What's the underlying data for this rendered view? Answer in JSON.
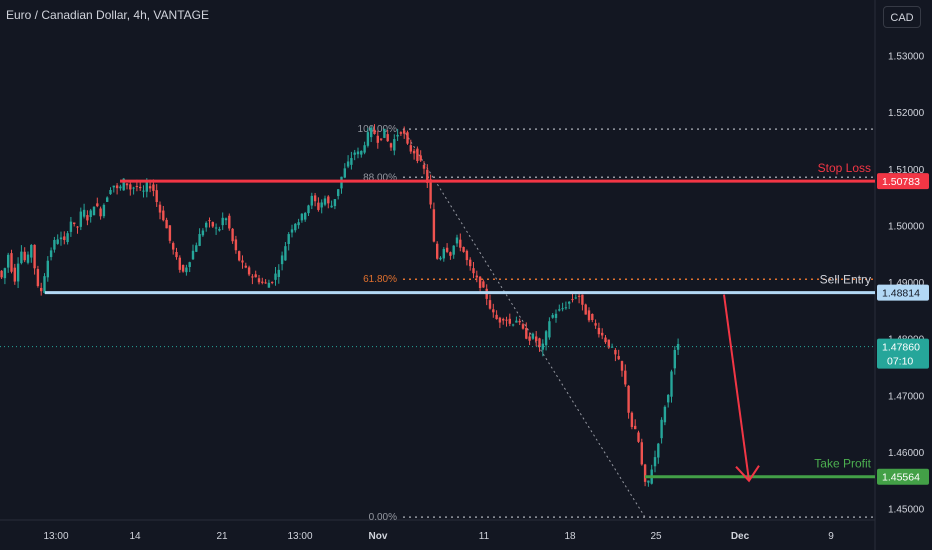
{
  "header": {
    "title": "Euro / Canadian Dollar, 4h, VANTAGE",
    "currency_button": "CAD"
  },
  "colors": {
    "background": "#131722",
    "up": "#26a69a",
    "down": "#ef5350",
    "stop_loss": "#f23645",
    "sell_entry": "#b2d8f5",
    "take_profit": "#43a047",
    "fib_line": "#9598a1",
    "fib_618": "#e0702e",
    "trend_arrow": "#f23645",
    "last_price": "#26a69a"
  },
  "chart_data": {
    "type": "candlestick",
    "ylim": [
      1.448,
      1.5345
    ],
    "y_ticks": [
      1.45,
      1.46,
      1.47,
      1.48,
      1.49,
      1.5,
      1.51,
      1.52,
      1.53
    ],
    "y_tick_labels": [
      "1.45000",
      "1.46000",
      "1.47000",
      "1.48000",
      "1.49000",
      "1.50000",
      "1.51000",
      "1.52000",
      "1.53000"
    ],
    "x_tick_labels": [
      "13:00",
      "14",
      "21",
      "13:00",
      "Nov",
      "11",
      "18",
      "25",
      "Dec",
      "9"
    ],
    "path_points": [
      [
        0,
        1.492
      ],
      [
        4,
        1.4905
      ],
      [
        10,
        1.495
      ],
      [
        16,
        1.49
      ],
      [
        22,
        1.496
      ],
      [
        28,
        1.493
      ],
      [
        34,
        1.4975
      ],
      [
        38,
        1.489
      ],
      [
        43,
        1.4885
      ],
      [
        48,
        1.493
      ],
      [
        54,
        1.4965
      ],
      [
        60,
        1.498
      ],
      [
        66,
        1.497
      ],
      [
        72,
        1.501
      ],
      [
        78,
        1.499
      ],
      [
        84,
        1.503
      ],
      [
        90,
        1.501
      ],
      [
        96,
        1.504
      ],
      [
        102,
        1.502
      ],
      [
        108,
        1.505
      ],
      [
        114,
        1.5075
      ],
      [
        120,
        1.506
      ],
      [
        126,
        1.508
      ],
      [
        132,
        1.5065
      ],
      [
        138,
        1.507
      ],
      [
        144,
        1.5055
      ],
      [
        150,
        1.5075
      ],
      [
        156,
        1.506
      ],
      [
        160,
        1.503
      ],
      [
        166,
        1.501
      ],
      [
        172,
        1.497
      ],
      [
        178,
        1.494
      ],
      [
        184,
        1.4915
      ],
      [
        190,
        1.4935
      ],
      [
        196,
        1.496
      ],
      [
        202,
        1.4985
      ],
      [
        208,
        1.5005
      ],
      [
        214,
        1.5
      ],
      [
        220,
        1.499
      ],
      [
        226,
        1.502
      ],
      [
        230,
        1.5
      ],
      [
        236,
        1.496
      ],
      [
        242,
        1.4935
      ],
      [
        248,
        1.492
      ],
      [
        254,
        1.491
      ],
      [
        260,
        1.4905
      ],
      [
        266,
        1.4895
      ],
      [
        272,
        1.49
      ],
      [
        278,
        1.4915
      ],
      [
        284,
        1.4945
      ],
      [
        290,
        1.4985
      ],
      [
        296,
        1.5005
      ],
      [
        302,
        1.501
      ],
      [
        308,
        1.503
      ],
      [
        314,
        1.505
      ],
      [
        320,
        1.503
      ],
      [
        326,
        1.505
      ],
      [
        332,
        1.503
      ],
      [
        338,
        1.5055
      ],
      [
        344,
        1.509
      ],
      [
        350,
        1.511
      ],
      [
        356,
        1.513
      ],
      [
        362,
        1.5125
      ],
      [
        368,
        1.5155
      ],
      [
        374,
        1.517
      ],
      [
        380,
        1.515
      ],
      [
        386,
        1.5165
      ],
      [
        392,
        1.5135
      ],
      [
        398,
        1.516
      ],
      [
        404,
        1.517
      ],
      [
        410,
        1.5135
      ],
      [
        416,
        1.513
      ],
      [
        422,
        1.511
      ],
      [
        428,
        1.509
      ],
      [
        432,
        1.504
      ],
      [
        436,
        1.496
      ],
      [
        440,
        1.4935
      ],
      [
        446,
        1.4965
      ],
      [
        452,
        1.495
      ],
      [
        458,
        1.4975
      ],
      [
        464,
        1.496
      ],
      [
        470,
        1.493
      ],
      [
        476,
        1.491
      ],
      [
        482,
        1.4895
      ],
      [
        488,
        1.4875
      ],
      [
        494,
        1.4845
      ],
      [
        500,
        1.483
      ],
      [
        506,
        1.484
      ],
      [
        512,
        1.4825
      ],
      [
        518,
        1.4835
      ],
      [
        524,
        1.4815
      ],
      [
        530,
        1.48
      ],
      [
        536,
        1.4805
      ],
      [
        542,
        1.478
      ],
      [
        546,
        1.479
      ],
      [
        550,
        1.483
      ],
      [
        556,
        1.4845
      ],
      [
        562,
        1.485
      ],
      [
        568,
        1.486
      ],
      [
        574,
        1.487
      ],
      [
        580,
        1.488
      ],
      [
        584,
        1.4855
      ],
      [
        590,
        1.484
      ],
      [
        596,
        1.4825
      ],
      [
        602,
        1.481
      ],
      [
        608,
        1.4795
      ],
      [
        614,
        1.478
      ],
      [
        620,
        1.476
      ],
      [
        626,
        1.473
      ],
      [
        632,
        1.465
      ],
      [
        636,
        1.464
      ],
      [
        640,
        1.462
      ],
      [
        644,
        1.457
      ],
      [
        648,
        1.453
      ],
      [
        652,
        1.4565
      ],
      [
        656,
        1.4585
      ],
      [
        660,
        1.462
      ],
      [
        666,
        1.468
      ],
      [
        670,
        1.47
      ],
      [
        674,
        1.476
      ],
      [
        678,
        1.4786
      ]
    ],
    "levels": {
      "stop_loss": {
        "label": "Stop Loss",
        "value": 1.50783,
        "price_label": "1.50783"
      },
      "sell_entry": {
        "label": "Sell Entry",
        "value": 1.48814,
        "price_label": "1.48814"
      },
      "take_profit": {
        "label": "Take Profit",
        "value": 1.45564,
        "price_label": "1.45564"
      },
      "last_price": {
        "value": 1.4786,
        "price_label": "1.47860",
        "countdown": "07:10"
      }
    },
    "fibonacci": [
      {
        "label": "100.00%",
        "value": 1.517
      },
      {
        "label": "88.00%",
        "value": 1.5085
      },
      {
        "label": "61.80%",
        "value": 1.4905
      },
      {
        "label": "0.00%",
        "value": 1.4485
      }
    ]
  }
}
